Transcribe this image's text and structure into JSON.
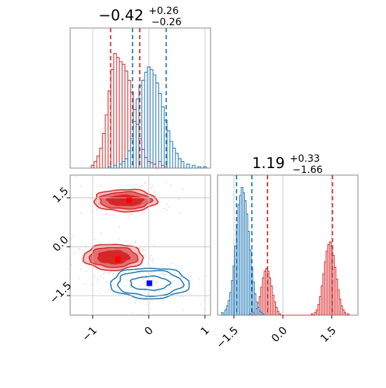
{
  "chart_data": {
    "type": "corner",
    "colors": {
      "red": "#d62728",
      "blue": "#1f77b4",
      "grid": "#bdbdbd",
      "axis": "#808080"
    },
    "panels": [
      {
        "id": "hist-param1",
        "type": "histogram",
        "title": {
          "main": "−0.42",
          "sup": "+0.26",
          "sub": "−0.26"
        },
        "xlim": [
          -1.4,
          1.1
        ],
        "grid_x": [
          -1,
          0,
          1
        ],
        "series": [
          {
            "name": "",
            "color": "#d62728",
            "quantiles": [
              -0.68,
              -0.16
            ],
            "bins": [
              [
                -1.0,
                0.02
              ],
              [
                -0.95,
                0.05
              ],
              [
                -0.9,
                0.09
              ],
              [
                -0.85,
                0.15
              ],
              [
                -0.8,
                0.26
              ],
              [
                -0.75,
                0.4
              ],
              [
                -0.7,
                0.58
              ],
              [
                -0.65,
                0.74
              ],
              [
                -0.6,
                0.86
              ],
              [
                -0.55,
                0.83
              ],
              [
                -0.5,
                0.8
              ],
              [
                -0.45,
                0.78
              ],
              [
                -0.4,
                0.73
              ],
              [
                -0.35,
                0.66
              ],
              [
                -0.3,
                0.57
              ],
              [
                -0.25,
                0.44
              ],
              [
                -0.2,
                0.33
              ],
              [
                -0.15,
                0.22
              ],
              [
                -0.1,
                0.14
              ],
              [
                -0.05,
                0.08
              ],
              [
                0.0,
                0.05
              ],
              [
                0.05,
                0.04
              ],
              [
                0.1,
                0.03
              ],
              [
                0.2,
                0.05
              ],
              [
                0.25,
                0.02
              ],
              [
                0.3,
                0.01
              ]
            ]
          },
          {
            "name": "",
            "color": "#1f77b4",
            "quantiles": [
              -0.29,
              0.31
            ],
            "bins": [
              [
                -0.7,
                0.01
              ],
              [
                -0.6,
                0.02
              ],
              [
                -0.5,
                0.03
              ],
              [
                -0.45,
                0.05
              ],
              [
                -0.4,
                0.07
              ],
              [
                -0.35,
                0.13
              ],
              [
                -0.3,
                0.22
              ],
              [
                -0.25,
                0.35
              ],
              [
                -0.2,
                0.52
              ],
              [
                -0.15,
                0.62
              ],
              [
                -0.1,
                0.66
              ],
              [
                -0.05,
                0.72
              ],
              [
                0.0,
                0.76
              ],
              [
                0.05,
                0.74
              ],
              [
                0.1,
                0.7
              ],
              [
                0.15,
                0.64
              ],
              [
                0.2,
                0.56
              ],
              [
                0.25,
                0.46
              ],
              [
                0.3,
                0.36
              ],
              [
                0.35,
                0.28
              ],
              [
                0.4,
                0.2
              ],
              [
                0.45,
                0.15
              ],
              [
                0.5,
                0.11
              ],
              [
                0.55,
                0.07
              ],
              [
                0.6,
                0.05
              ],
              [
                0.7,
                0.03
              ],
              [
                0.8,
                0.02
              ],
              [
                0.9,
                0.01
              ],
              [
                1.0,
                0.01
              ]
            ]
          }
        ]
      },
      {
        "id": "contour-param1-param2",
        "type": "contour",
        "xlim": [
          -1.4,
          1.1
        ],
        "ylim": [
          -2.1,
          2.2
        ],
        "xticks": [
          "−1",
          "0",
          "1"
        ],
        "xtick_values": [
          -1,
          0,
          1
        ],
        "yticks": [
          "−1.5",
          "0.0",
          "1.5"
        ],
        "ytick_values": [
          -1.5,
          0,
          1.5
        ],
        "series": [
          {
            "name": "",
            "color": "#d62728",
            "filled": true,
            "modes": [
              {
                "center": [
                  -0.42,
                  1.42
                ],
                "radii": [
                  [
                    0.32,
                    0.16
                  ],
                  [
                    0.46,
                    0.26
                  ],
                  [
                    0.56,
                    0.34
                  ]
                ],
                "marker": [
                  -0.35,
                  1.42
                ]
              },
              {
                "center": [
                  -0.63,
                  -0.32
                ],
                "radii": [
                  [
                    0.28,
                    0.2
                  ],
                  [
                    0.43,
                    0.31
                  ],
                  [
                    0.53,
                    0.4
                  ]
                ],
                "marker": [
                  -0.55,
                  -0.39
                ]
              }
            ]
          },
          {
            "name": "",
            "color": "#1f77b4",
            "filled": false,
            "modes": [
              {
                "center": [
                  0.02,
                  -1.12
                ],
                "radii": [
                  [
                    0.35,
                    0.21
                  ],
                  [
                    0.58,
                    0.39
                  ],
                  [
                    0.7,
                    0.47
                  ]
                ],
                "marker": [
                  0.01,
                  -1.12
                ]
              }
            ]
          }
        ]
      },
      {
        "id": "hist-param2",
        "type": "histogram",
        "title": {
          "main": "1.19",
          "sup": "+0.33",
          "sub": "−1.66"
        },
        "xlim": [
          -2.0,
          2.3
        ],
        "grid_x": [
          -1.5,
          0,
          1.5
        ],
        "xticks": [
          "−1.5",
          "0.0",
          "1.5"
        ],
        "xtick_values": [
          -1.5,
          0,
          1.5
        ],
        "series": [
          {
            "name": "",
            "color": "#d62728",
            "quantiles": [
              -0.47,
              1.52
            ],
            "bins": [
              [
                -1.0,
                0.01
              ],
              [
                -0.9,
                0.02
              ],
              [
                -0.8,
                0.05
              ],
              [
                -0.75,
                0.09
              ],
              [
                -0.7,
                0.14
              ],
              [
                -0.65,
                0.21
              ],
              [
                -0.6,
                0.28
              ],
              [
                -0.55,
                0.33
              ],
              [
                -0.5,
                0.35
              ],
              [
                -0.45,
                0.33
              ],
              [
                -0.4,
                0.28
              ],
              [
                -0.35,
                0.22
              ],
              [
                -0.3,
                0.15
              ],
              [
                -0.25,
                0.1
              ],
              [
                -0.2,
                0.06
              ],
              [
                -0.15,
                0.03
              ],
              [
                -0.1,
                0.01
              ],
              [
                0.9,
                0.01
              ],
              [
                1.0,
                0.02
              ],
              [
                1.05,
                0.04
              ],
              [
                1.1,
                0.08
              ],
              [
                1.15,
                0.14
              ],
              [
                1.2,
                0.22
              ],
              [
                1.25,
                0.31
              ],
              [
                1.3,
                0.4
              ],
              [
                1.35,
                0.48
              ],
              [
                1.4,
                0.53
              ],
              [
                1.45,
                0.55
              ],
              [
                1.5,
                0.52
              ],
              [
                1.55,
                0.45
              ],
              [
                1.6,
                0.36
              ],
              [
                1.65,
                0.27
              ],
              [
                1.7,
                0.19
              ],
              [
                1.75,
                0.12
              ],
              [
                1.8,
                0.07
              ],
              [
                1.85,
                0.04
              ],
              [
                1.9,
                0.02
              ],
              [
                2.0,
                0.01
              ]
            ]
          },
          {
            "name": "",
            "color": "#1f77b4",
            "quantiles": [
              -1.42,
              -0.95
            ],
            "bins": [
              [
                -1.85,
                0.02
              ],
              [
                -1.75,
                0.04
              ],
              [
                -1.7,
                0.07
              ],
              [
                -1.65,
                0.11
              ],
              [
                -1.6,
                0.17
              ],
              [
                -1.55,
                0.26
              ],
              [
                -1.5,
                0.37
              ],
              [
                -1.45,
                0.52
              ],
              [
                -1.4,
                0.68
              ],
              [
                -1.35,
                0.83
              ],
              [
                -1.3,
                0.9
              ],
              [
                -1.25,
                0.96
              ],
              [
                -1.2,
                0.92
              ],
              [
                -1.15,
                0.86
              ],
              [
                -1.1,
                0.76
              ],
              [
                -1.05,
                0.63
              ],
              [
                -1.0,
                0.49
              ],
              [
                -0.95,
                0.36
              ],
              [
                -0.9,
                0.25
              ],
              [
                -0.85,
                0.16
              ],
              [
                -0.8,
                0.1
              ],
              [
                -0.75,
                0.06
              ],
              [
                -0.7,
                0.03
              ],
              [
                -0.65,
                0.02
              ],
              [
                -0.6,
                0.01
              ]
            ]
          }
        ]
      }
    ]
  }
}
